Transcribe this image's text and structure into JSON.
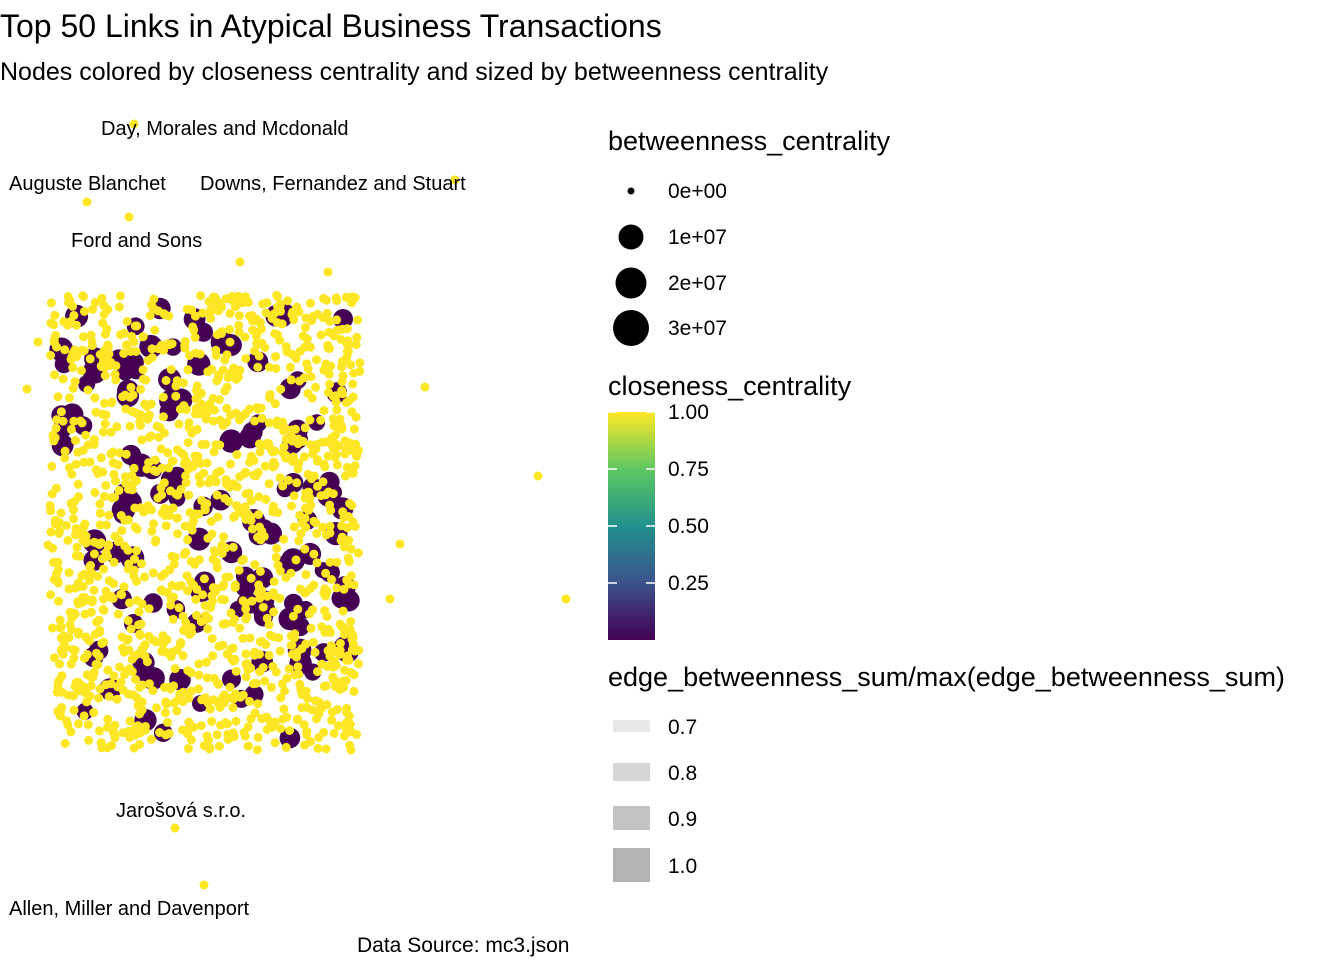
{
  "title": "Top 50 Links in Atypical Business Transactions",
  "subtitle": "Nodes colored by closeness centrality and sized by betweenness centrality",
  "caption": "Data Source: mc3.json",
  "colors": {
    "high_closeness": "#fde725",
    "low_closeness": "#440154",
    "viridis": [
      "#440154",
      "#3b528b",
      "#21918c",
      "#5ec962",
      "#fde725"
    ],
    "edge": "#b3b3b3"
  },
  "chart_data": {
    "type": "network",
    "node_labels": [
      {
        "name": "Day, Morales and Mcdonald",
        "closeness_centrality": 1.0,
        "betweenness_centrality": 0
      },
      {
        "name": "Auguste Blanchet",
        "closeness_centrality": 1.0,
        "betweenness_centrality": 0
      },
      {
        "name": "Downs, Fernandez and Stuart",
        "closeness_centrality": 1.0,
        "betweenness_centrality": 0
      },
      {
        "name": "Ford and Sons",
        "closeness_centrality": 1.0,
        "betweenness_centrality": 0
      },
      {
        "name": "Jarošová s.r.o.",
        "closeness_centrality": 1.0,
        "betweenness_centrality": 0
      },
      {
        "name": "Allen, Miller and Davenport",
        "closeness_centrality": 1.0,
        "betweenness_centrality": 0
      }
    ],
    "node_counts": {
      "high_closeness_small": 1400,
      "low_closeness_large": 130
    },
    "legends": {
      "size": {
        "title": "betweenness_centrality",
        "breaks": [
          0,
          10000000,
          20000000,
          30000000
        ],
        "labels": [
          "0e+00",
          "1e+07",
          "2e+07",
          "3e+07"
        ]
      },
      "color": {
        "title": "closeness_centrality",
        "limits": [
          0,
          1
        ],
        "breaks": [
          1.0,
          0.75,
          0.5,
          0.25
        ],
        "labels": [
          "1.00",
          "0.75",
          "0.50",
          "0.25"
        ]
      },
      "edge_alpha": {
        "title": "edge_betweenness_sum/max(edge_betweenness_sum)",
        "breaks": [
          0.7,
          0.8,
          0.9,
          1.0
        ],
        "labels": [
          "0.7",
          "0.8",
          "0.9",
          "1.0"
        ]
      }
    }
  }
}
